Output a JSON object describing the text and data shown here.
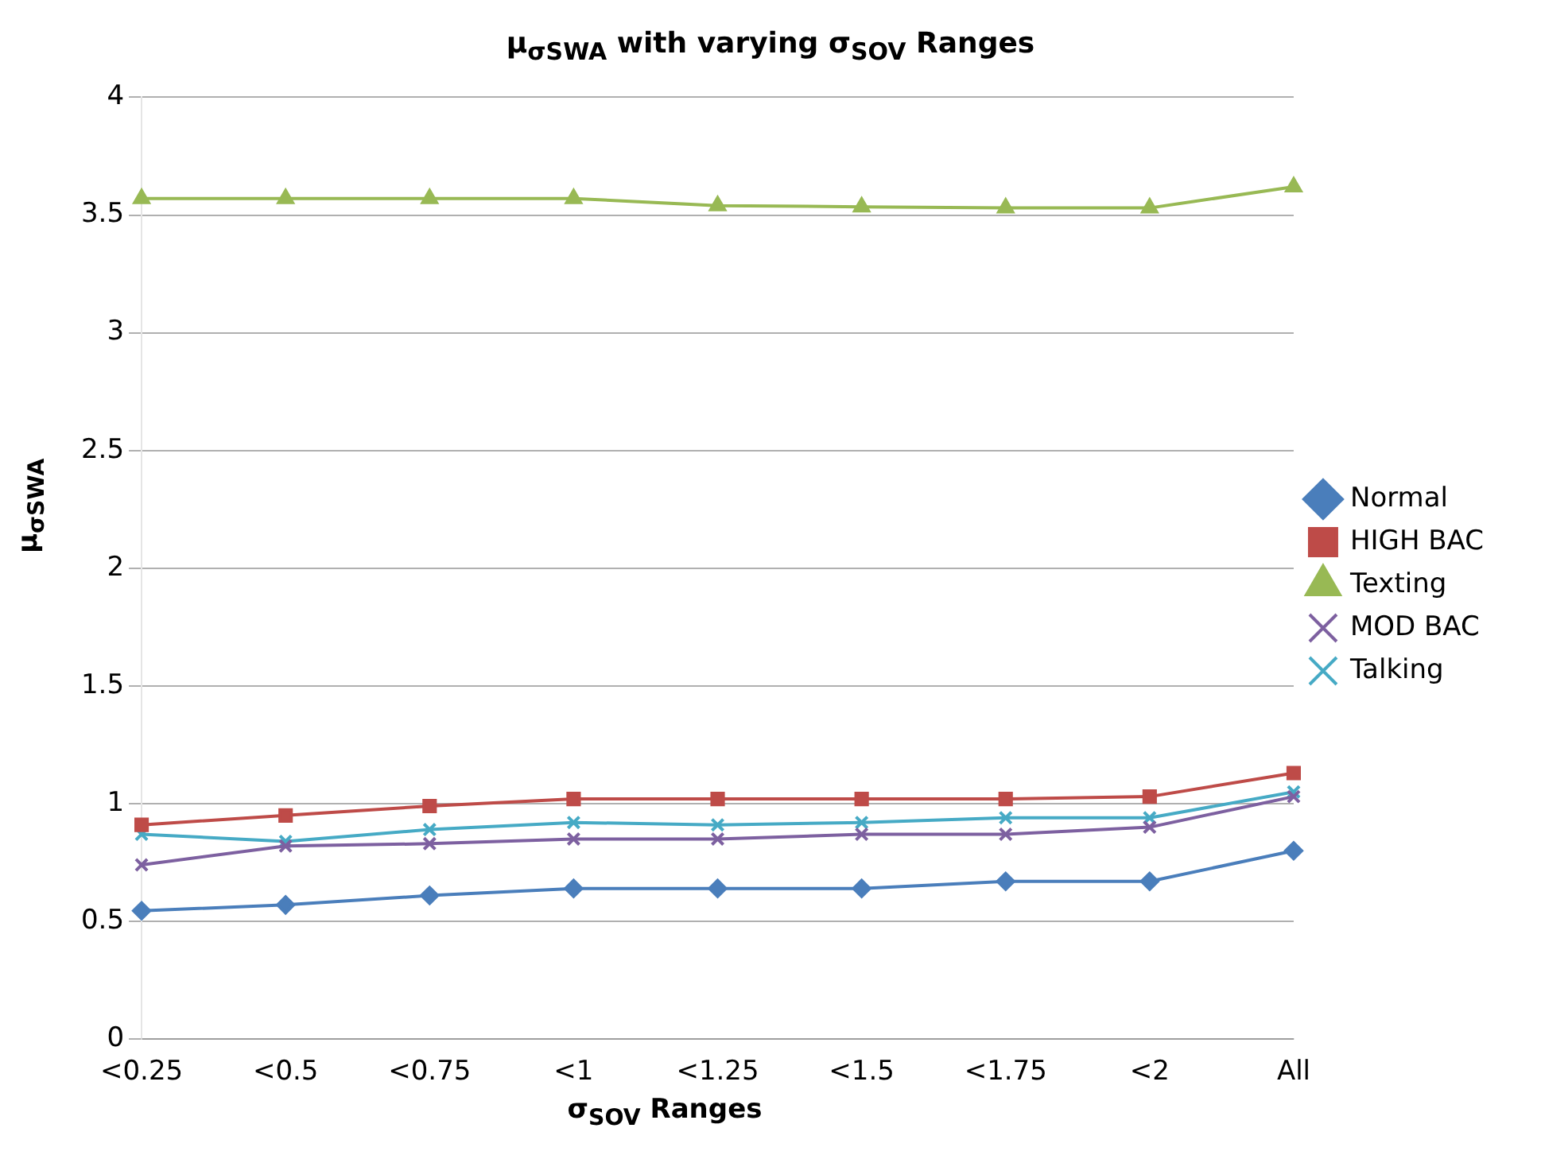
{
  "chart_data": {
    "type": "line",
    "title": "μ$_{σSWA}$ with varying σ$_{SOV}$ Ranges",
    "xlabel": "σ$_{SOV}$ Ranges",
    "ylabel": "μ$_{σSWA}$",
    "categories": [
      "<0.25",
      "<0.5",
      "<0.75",
      "<1",
      "<1.25",
      "<1.5",
      "<1.75",
      "<2",
      "All"
    ],
    "series": [
      {
        "name": "Normal",
        "color": "#4a7ebb",
        "marker": "diamond",
        "values": [
          0.545,
          0.57,
          0.61,
          0.64,
          0.64,
          0.64,
          0.67,
          0.67,
          0.8
        ]
      },
      {
        "name": "HIGH BAC",
        "color": "#be4b48",
        "marker": "square",
        "values": [
          0.91,
          0.95,
          0.99,
          1.02,
          1.02,
          1.02,
          1.02,
          1.03,
          1.13
        ]
      },
      {
        "name": "Texting",
        "color": "#98b954",
        "marker": "triangle",
        "values": [
          3.57,
          3.57,
          3.57,
          3.57,
          3.54,
          3.535,
          3.53,
          3.53,
          3.62
        ]
      },
      {
        "name": "MOD BAC",
        "color": "#7d60a0",
        "marker": "cross",
        "values": [
          0.74,
          0.82,
          0.83,
          0.85,
          0.85,
          0.87,
          0.87,
          0.9,
          1.03
        ]
      },
      {
        "name": "Talking",
        "color": "#46aac5",
        "marker": "cross",
        "values": [
          0.87,
          0.84,
          0.89,
          0.92,
          0.91,
          0.92,
          0.94,
          0.94,
          1.05
        ]
      }
    ],
    "ylim": [
      0,
      4
    ],
    "yticks": [
      0,
      0.5,
      1,
      1.5,
      2,
      2.5,
      3,
      3.5,
      4
    ],
    "grid": "y",
    "legend": "right",
    "line_style": "solid"
  }
}
